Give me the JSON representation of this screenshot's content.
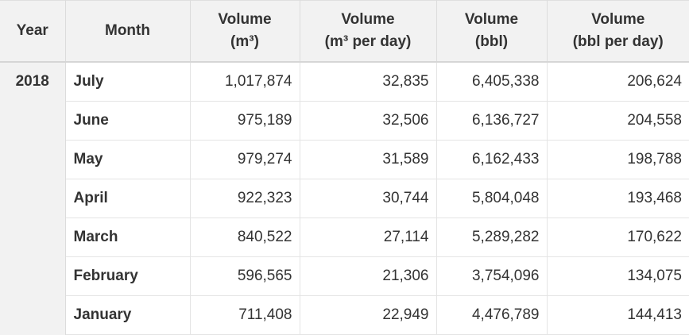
{
  "table": {
    "headers": {
      "year": "Year",
      "month": "Month",
      "vol_m3": [
        "Volume",
        "(m³)"
      ],
      "vol_m3_day": [
        "Volume",
        "(m³ per day)"
      ],
      "vol_bbl": [
        "Volume",
        "(bbl)"
      ],
      "vol_bbl_day": [
        "Volume",
        "(bbl per day)"
      ]
    },
    "year": "2018",
    "rows": [
      {
        "month": "July",
        "vol_m3": "1,017,874",
        "vol_m3_day": "32,835",
        "vol_bbl": "6,405,338",
        "vol_bbl_day": "206,624"
      },
      {
        "month": "June",
        "vol_m3": "975,189",
        "vol_m3_day": "32,506",
        "vol_bbl": "6,136,727",
        "vol_bbl_day": "204,558"
      },
      {
        "month": "May",
        "vol_m3": "979,274",
        "vol_m3_day": "31,589",
        "vol_bbl": "6,162,433",
        "vol_bbl_day": "198,788"
      },
      {
        "month": "April",
        "vol_m3": "922,323",
        "vol_m3_day": "30,744",
        "vol_bbl": "5,804,048",
        "vol_bbl_day": "193,468"
      },
      {
        "month": "March",
        "vol_m3": "840,522",
        "vol_m3_day": "27,114",
        "vol_bbl": "5,289,282",
        "vol_bbl_day": "170,622"
      },
      {
        "month": "February",
        "vol_m3": "596,565",
        "vol_m3_day": "21,306",
        "vol_bbl": "3,754,096",
        "vol_bbl_day": "134,075"
      },
      {
        "month": "January",
        "vol_m3": "711,408",
        "vol_m3_day": "22,949",
        "vol_bbl": "4,476,789",
        "vol_bbl_day": "144,413"
      }
    ]
  }
}
